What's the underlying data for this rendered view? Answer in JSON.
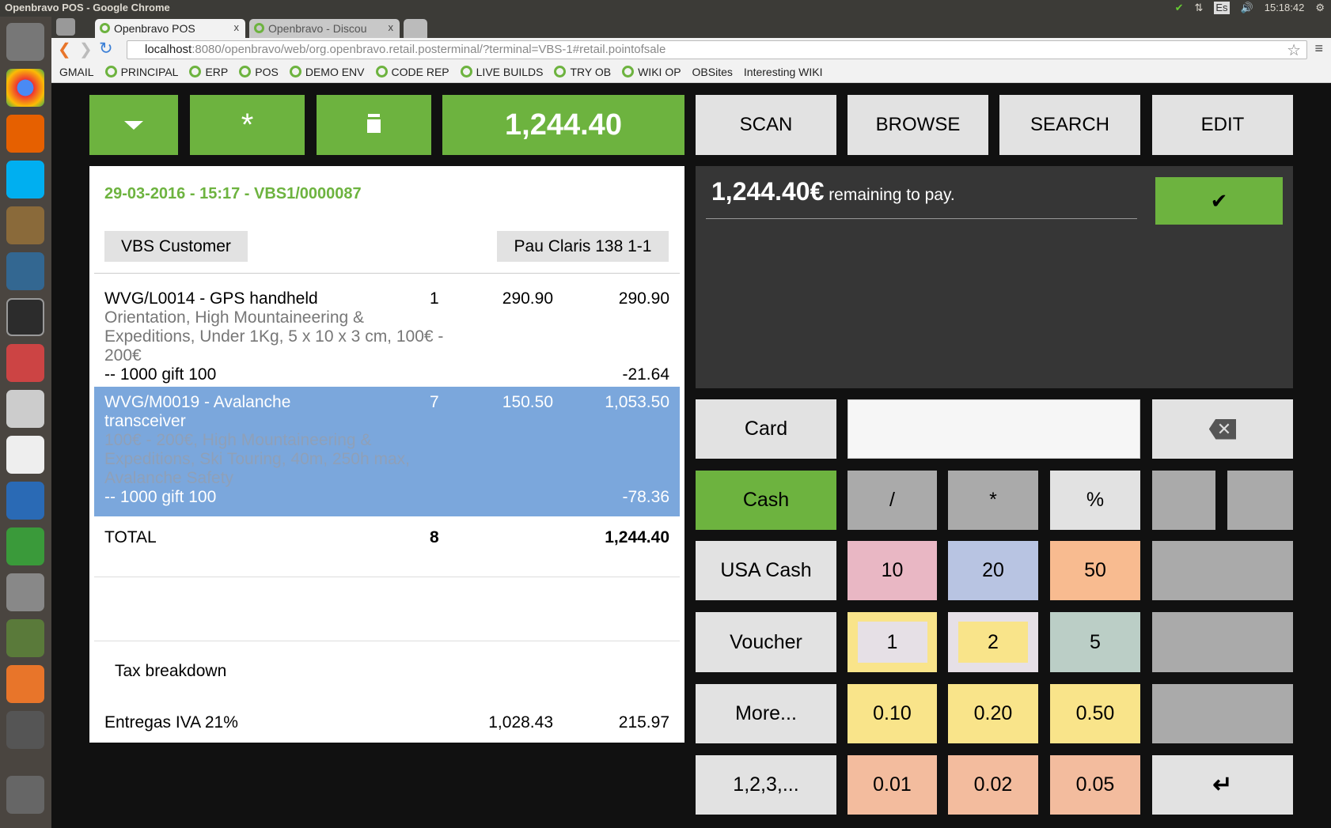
{
  "window": {
    "title": "Openbravo POS - Google Chrome",
    "time": "15:18:42",
    "lang": "Es"
  },
  "tabs": [
    {
      "label": "Openbravo POS",
      "close": "x"
    },
    {
      "label": "Openbravo - Discou",
      "close": "x"
    }
  ],
  "address": {
    "host": "localhost",
    "rest": ":8080/openbravo/web/org.openbravo.retail.posterminal/?terminal=VBS-1#retail.pointofsale"
  },
  "bookmarks": [
    "GMAIL",
    "PRINCIPAL",
    "ERP",
    "POS",
    "DEMO ENV",
    "CODE REP",
    "LIVE BUILDS",
    "TRY OB",
    "WIKI OP",
    "OBSites",
    "Interesting WIKI"
  ],
  "toolbar": {
    "menu_icon": "chevron-down-icon",
    "new_icon": "asterisk-icon",
    "delete_icon": "trash-icon",
    "total": "1,244.40",
    "scan": "SCAN",
    "browse": "BROWSE",
    "search": "SEARCH",
    "edit": "EDIT"
  },
  "receipt": {
    "header": "29-03-2016 - 15:17 - VBS1/0000087",
    "customer": "VBS Customer",
    "address": "Pau Claris 138 1-1",
    "lines": [
      {
        "name": "WVG/L0014 - GPS handheld",
        "qty": "1",
        "price": "290.90",
        "amount": "290.90",
        "desc": "Orientation, High Mountaineering & Expeditions, Under 1Kg, 5 x 10 x 3 cm, 100€ - 200€",
        "promo": "-- 1000 gift 100",
        "promo_amount": "-21.64"
      },
      {
        "name": "WVG/M0019 - Avalanche transceiver",
        "qty": "7",
        "price": "150.50",
        "amount": "1,053.50",
        "desc": "100€ - 200€, High Mountaineering & Expeditions, Ski Touring, 40m, 250h max, Avalanche Safety",
        "promo": "-- 1000 gift 100",
        "promo_amount": "-78.36"
      }
    ],
    "total_label": "TOTAL",
    "total_qty": "8",
    "total": "1,244.40",
    "tax_title": "Tax breakdown",
    "tax": {
      "name": "Entregas IVA 21%",
      "base": "1,028.43",
      "amount": "215.97"
    }
  },
  "payment": {
    "remaining_amount": "1,244.40€",
    "remaining_text": " remaining to pay.",
    "done_icon": "checkmark-icon"
  },
  "keypad": {
    "card": "Card",
    "input_value": "",
    "cash": "Cash",
    "usa_cash": "USA Cash",
    "voucher": "Voucher",
    "more": "More...",
    "numbers": "1,2,3,...",
    "div": "/",
    "mul": "*",
    "pct": "%",
    "coins": [
      "10",
      "20",
      "50",
      "1",
      "2",
      "5",
      "0.10",
      "0.20",
      "0.50",
      "0.01",
      "0.02",
      "0.05"
    ]
  }
}
